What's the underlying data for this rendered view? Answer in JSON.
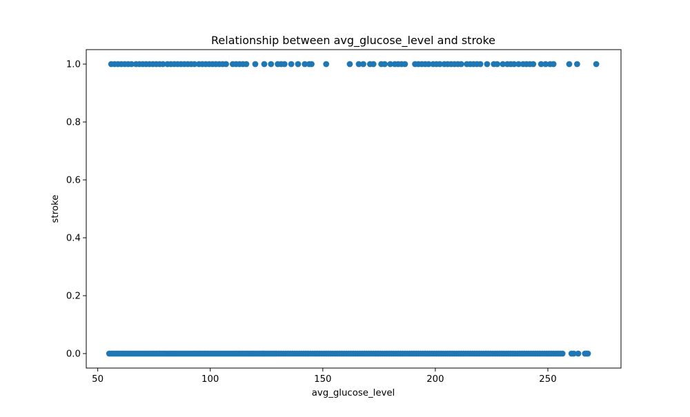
{
  "chart_data": {
    "type": "scatter",
    "title": "Relationship between avg_glucose_level and stroke",
    "xlabel": "avg_glucose_level",
    "ylabel": "stroke",
    "xlim": [
      44.9,
      282.5
    ],
    "ylim": [
      -0.05,
      1.05
    ],
    "xticks": [
      {
        "value": 50,
        "label": "50"
      },
      {
        "value": 100,
        "label": "100"
      },
      {
        "value": 150,
        "label": "150"
      },
      {
        "value": 200,
        "label": "200"
      },
      {
        "value": 250,
        "label": "250"
      }
    ],
    "yticks": [
      {
        "value": 0.0,
        "label": "0.0"
      },
      {
        "value": 0.2,
        "label": "0.2"
      },
      {
        "value": 0.4,
        "label": "0.4"
      },
      {
        "value": 0.6,
        "label": "0.6"
      },
      {
        "value": 0.8,
        "label": "0.8"
      },
      {
        "value": 1.0,
        "label": "1.0"
      }
    ],
    "grid": false,
    "marker_color": "#1f77b4",
    "series": [
      {
        "y": 1,
        "x": [
          56,
          57.5,
          59,
          60.5,
          62,
          63.5,
          65,
          67,
          68.5,
          70,
          71.5,
          73,
          74.5,
          76,
          77.5,
          79,
          81,
          82.5,
          84,
          85.5,
          87,
          88.5,
          90,
          91.5,
          93,
          95,
          96.5,
          98,
          99.5,
          101,
          102.5,
          104,
          105.5,
          107,
          110,
          111.5,
          113,
          114.5,
          116,
          120,
          124,
          127,
          130,
          131.5,
          133,
          136,
          139,
          142,
          144,
          145,
          151.5,
          162,
          166,
          168,
          171,
          172.5,
          176,
          177.5,
          180,
          182,
          183.5,
          185,
          186.5,
          191,
          192.5,
          194,
          195.5,
          197,
          199,
          200.5,
          202,
          204,
          205.5,
          207,
          208.5,
          210,
          211.5,
          214,
          215.5,
          217,
          218.5,
          220,
          223,
          226,
          227.5,
          230,
          232,
          233.5,
          235,
          237,
          239,
          240.5,
          242,
          243.5,
          247,
          249,
          251,
          252.5,
          259.5,
          263,
          271.5
        ]
      },
      {
        "y": 0,
        "x": [
          55.1,
          55.9,
          56.7,
          57.5,
          58.3,
          59.1,
          59.9,
          60.7,
          61.5,
          62.3,
          63.1,
          63.9,
          64.7,
          65.5,
          66.3,
          67.1,
          67.9,
          68.7,
          69.5,
          70.3,
          71.1,
          71.9,
          72.7,
          73.5,
          74.3,
          75.1,
          75.9,
          76.7,
          77.5,
          78.3,
          79.1,
          79.9,
          80.7,
          81.5,
          82.3,
          83.1,
          83.9,
          84.7,
          85.5,
          86.3,
          87.1,
          87.9,
          88.7,
          89.5,
          90.3,
          91.1,
          91.9,
          92.7,
          93.5,
          94.3,
          95.1,
          95.9,
          96.7,
          97.5,
          98.3,
          99.1,
          99.9,
          100.7,
          101.5,
          102.3,
          103.1,
          103.9,
          104.7,
          105.5,
          106.3,
          107.1,
          107.9,
          108.7,
          109.5,
          110.3,
          111.1,
          111.9,
          112.7,
          113.5,
          114.3,
          115.1,
          115.9,
          116.7,
          117.5,
          118.3,
          119.1,
          119.9,
          120.7,
          121.5,
          122.3,
          123.1,
          123.9,
          124.7,
          125.5,
          126.3,
          127.1,
          127.9,
          128.7,
          129.5,
          130.5,
          131.5,
          132.5,
          133.5,
          134.5,
          135.5,
          136.5,
          137.5,
          138.5,
          139.5,
          140.5,
          141.5,
          142.5,
          143.5,
          144.5,
          145.5,
          146.5,
          147.5,
          148.5,
          149.5,
          150.5,
          151.5,
          152.5,
          153.5,
          154.5,
          155.5,
          156.5,
          157.5,
          158.5,
          159.5,
          160.5,
          161.5,
          162.5,
          163.5,
          164.5,
          165.5,
          166.5,
          167.5,
          168.5,
          169.5,
          170.5,
          171.5,
          172.5,
          173.5,
          174.5,
          175.5,
          176.5,
          177.5,
          178.5,
          179.5,
          180.5,
          181.5,
          182.5,
          183.5,
          184.5,
          185.5,
          186.5,
          187.5,
          188.5,
          189.5,
          190.5,
          191.5,
          192.5,
          193.5,
          194.5,
          195.5,
          196.5,
          197.5,
          198.5,
          199.5,
          200.5,
          201.5,
          202.5,
          203.5,
          204.5,
          205.5,
          206.5,
          207.5,
          208.5,
          209.5,
          210.5,
          211.5,
          212.5,
          213.5,
          214.5,
          215.5,
          216.5,
          217.5,
          218.5,
          219.5,
          220.5,
          221.5,
          222.5,
          223.5,
          224.5,
          225.5,
          226.5,
          227.5,
          228.5,
          229.5,
          230.5,
          231.5,
          232.5,
          233.5,
          234.5,
          235.5,
          236.5,
          237.5,
          238.5,
          239.5,
          240.5,
          241.5,
          242.5,
          243.5,
          244.5,
          245.5,
          246.5,
          247.5,
          248.5,
          249.5,
          250.5,
          251.5,
          252.5,
          253.5,
          254.5,
          255.5,
          256.5,
          260.5,
          261.5,
          263.5,
          266.5,
          267.2,
          267.8
        ]
      }
    ]
  }
}
